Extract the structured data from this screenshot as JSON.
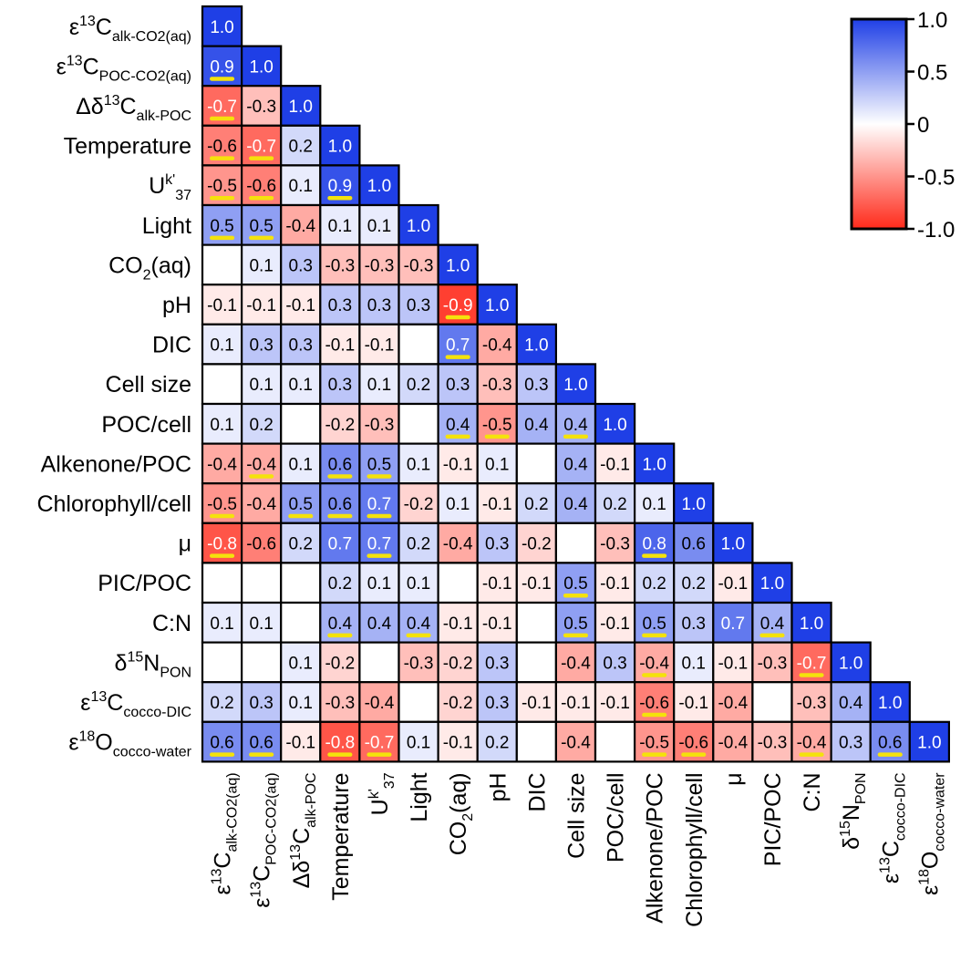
{
  "chart_data": {
    "type": "heatmap",
    "title": "",
    "rows": [
      {
        "main": "ε",
        "sup": "13",
        "base": "C",
        "sub": "alk-CO2(aq)",
        "after": ""
      },
      {
        "main": "ε",
        "sup": "13",
        "base": "C",
        "sub": "POC-CO2(aq)",
        "after": ""
      },
      {
        "main": "Δδ",
        "sup": "13",
        "base": "C",
        "sub": "alk-POC",
        "after": ""
      },
      {
        "main": "Temperature",
        "sup": "",
        "base": "",
        "sub": "",
        "after": ""
      },
      {
        "main": "U",
        "sup": "k'",
        "base": "",
        "sub": "37",
        "after": ""
      },
      {
        "main": "Light",
        "sup": "",
        "base": "",
        "sub": "",
        "after": ""
      },
      {
        "main": "CO",
        "sup": "",
        "base": "",
        "sub": "2",
        "after": "(aq)"
      },
      {
        "main": "pH",
        "sup": "",
        "base": "",
        "sub": "",
        "after": ""
      },
      {
        "main": "DIC",
        "sup": "",
        "base": "",
        "sub": "",
        "after": ""
      },
      {
        "main": "Cell size",
        "sup": "",
        "base": "",
        "sub": "",
        "after": ""
      },
      {
        "main": "POC/cell",
        "sup": "",
        "base": "",
        "sub": "",
        "after": ""
      },
      {
        "main": "Alkenone/POC",
        "sup": "",
        "base": "",
        "sub": "",
        "after": ""
      },
      {
        "main": "Chlorophyll/cell",
        "sup": "",
        "base": "",
        "sub": "",
        "after": ""
      },
      {
        "main": "μ",
        "sup": "",
        "base": "",
        "sub": "",
        "after": ""
      },
      {
        "main": "PIC/POC",
        "sup": "",
        "base": "",
        "sub": "",
        "after": ""
      },
      {
        "main": "C:N",
        "sup": "",
        "base": "",
        "sub": "",
        "after": ""
      },
      {
        "main": "δ",
        "sup": "15",
        "base": "N",
        "sub": "PON",
        "after": ""
      },
      {
        "main": "ε",
        "sup": "13",
        "base": "C",
        "sub": "cocco-DIC",
        "after": ""
      },
      {
        "main": "ε",
        "sup": "18",
        "base": "O",
        "sub": "cocco-water",
        "after": ""
      }
    ],
    "values": [
      [
        1.0
      ],
      [
        0.9,
        1.0
      ],
      [
        -0.7,
        -0.3,
        1.0
      ],
      [
        -0.6,
        -0.7,
        0.2,
        1.0
      ],
      [
        -0.5,
        -0.6,
        0.1,
        0.9,
        1.0
      ],
      [
        0.5,
        0.5,
        -0.4,
        0.1,
        0.1,
        1.0
      ],
      [
        0.0,
        0.1,
        0.3,
        -0.3,
        -0.3,
        -0.3,
        1.0
      ],
      [
        -0.1,
        -0.1,
        -0.1,
        0.3,
        0.3,
        0.3,
        -0.9,
        1.0
      ],
      [
        0.1,
        0.3,
        0.3,
        -0.1,
        -0.1,
        0.0,
        0.7,
        -0.4,
        1.0
      ],
      [
        0.0,
        0.1,
        0.1,
        0.3,
        0.1,
        0.2,
        0.3,
        -0.3,
        0.3,
        1.0
      ],
      [
        0.1,
        0.2,
        0.0,
        -0.2,
        -0.3,
        0.0,
        0.4,
        -0.5,
        0.4,
        0.4,
        1.0
      ],
      [
        -0.4,
        -0.4,
        0.1,
        0.6,
        0.5,
        0.1,
        -0.1,
        0.1,
        0.0,
        0.4,
        -0.1,
        1.0
      ],
      [
        -0.5,
        -0.4,
        0.5,
        0.6,
        0.7,
        -0.2,
        0.1,
        -0.1,
        0.2,
        0.4,
        0.2,
        0.1,
        1.0
      ],
      [
        -0.8,
        -0.6,
        0.2,
        0.7,
        0.7,
        0.2,
        -0.4,
        0.3,
        -0.2,
        0.0,
        -0.3,
        0.8,
        0.6,
        1.0
      ],
      [
        0.0,
        0.0,
        0.0,
        0.2,
        0.1,
        0.1,
        0.0,
        -0.1,
        -0.1,
        0.5,
        -0.1,
        0.2,
        0.2,
        -0.1,
        1.0
      ],
      [
        0.1,
        0.1,
        0.0,
        0.4,
        0.4,
        0.4,
        -0.1,
        -0.1,
        0.0,
        0.5,
        -0.1,
        0.5,
        0.3,
        0.7,
        0.4,
        1.0
      ],
      [
        0.0,
        0.0,
        0.1,
        -0.2,
        0.0,
        -0.3,
        -0.2,
        0.3,
        0.0,
        -0.4,
        0.3,
        -0.4,
        0.1,
        -0.1,
        -0.3,
        -0.7,
        1.0
      ],
      [
        0.2,
        0.3,
        0.1,
        -0.3,
        -0.4,
        0.0,
        -0.2,
        0.3,
        -0.1,
        -0.1,
        -0.1,
        -0.6,
        -0.1,
        -0.4,
        0.0,
        -0.3,
        0.4,
        1.0
      ],
      [
        0.6,
        0.6,
        -0.1,
        -0.8,
        -0.7,
        0.1,
        -0.1,
        0.2,
        0.0,
        -0.4,
        0.0,
        -0.5,
        -0.6,
        -0.4,
        -0.3,
        -0.4,
        0.3,
        0.6,
        1.0
      ]
    ],
    "labels": [
      [
        "1.0"
      ],
      [
        "0.9",
        "1.0"
      ],
      [
        "-0.7",
        "-0.3",
        "1.0"
      ],
      [
        "-0.6",
        "-0.7",
        "0.2",
        "1.0"
      ],
      [
        "-0.5",
        "-0.6",
        "0.1",
        "0.9",
        "1.0"
      ],
      [
        "0.5",
        "0.5",
        "-0.4",
        "0.1",
        "0.1",
        "1.0"
      ],
      [
        "",
        "0.1",
        "0.3",
        "-0.3",
        "-0.3",
        "-0.3",
        "1.0"
      ],
      [
        "-0.1",
        "-0.1",
        "-0.1",
        "0.3",
        "0.3",
        "0.3",
        "-0.9",
        "1.0"
      ],
      [
        "0.1",
        "0.3",
        "0.3",
        "-0.1",
        "-0.1",
        "",
        "0.7",
        "-0.4",
        "1.0"
      ],
      [
        "",
        "0.1",
        "0.1",
        "0.3",
        "0.1",
        "0.2",
        "0.3",
        "-0.3",
        "0.3",
        "1.0"
      ],
      [
        "0.1",
        "0.2",
        "",
        "-0.2",
        "-0.3",
        "",
        "0.4",
        "-0.5",
        "0.4",
        "0.4",
        "1.0"
      ],
      [
        "-0.4",
        "-0.4",
        "0.1",
        "0.6",
        "0.5",
        "0.1",
        "-0.1",
        "0.1",
        "",
        "0.4",
        "-0.1",
        "1.0"
      ],
      [
        "-0.5",
        "-0.4",
        "0.5",
        "0.6",
        "0.7",
        "-0.2",
        "0.1",
        "-0.1",
        "0.2",
        "0.4",
        "0.2",
        "0.1",
        "1.0"
      ],
      [
        "-0.8",
        "-0.6",
        "0.2",
        "0.7",
        "0.7",
        "0.2",
        "-0.4",
        "0.3",
        "-0.2",
        "",
        "-0.3",
        "0.8",
        "0.6",
        "1.0"
      ],
      [
        "",
        "",
        "",
        "0.2",
        "0.1",
        "0.1",
        "",
        "-0.1",
        "-0.1",
        "0.5",
        "-0.1",
        "0.2",
        "0.2",
        "-0.1",
        "1.0"
      ],
      [
        "0.1",
        "0.1",
        "",
        "0.4",
        "0.4",
        "0.4",
        "-0.1",
        "-0.1",
        "",
        "0.5",
        "-0.1",
        "0.5",
        "0.3",
        "0.7",
        "0.4",
        "1.0"
      ],
      [
        "",
        "",
        "0.1",
        "-0.2",
        "",
        "-0.3",
        "-0.2",
        "0.3",
        "",
        "-0.4",
        "0.3",
        "-0.4",
        "0.1",
        "-0.1",
        "-0.3",
        "-0.7",
        "1.0"
      ],
      [
        "0.2",
        "0.3",
        "0.1",
        "-0.3",
        "-0.4",
        "",
        "-0.2",
        "0.3",
        "-0.1",
        "-0.1",
        "-0.1",
        "-0.6",
        "-0.1",
        "-0.4",
        "",
        "-0.3",
        "0.4",
        "1.0"
      ],
      [
        "0.6",
        "0.6",
        "-0.1",
        "-0.8",
        "-0.7",
        "0.1",
        "-0.1",
        "0.2",
        "",
        "-0.4",
        "",
        "-0.5",
        "-0.6",
        "-0.4",
        "-0.3",
        "-0.4",
        "0.3",
        "0.6",
        "1.0"
      ]
    ],
    "significant": [
      [
        1,
        0
      ],
      [
        2,
        0
      ],
      [
        3,
        0
      ],
      [
        3,
        1
      ],
      [
        4,
        0
      ],
      [
        4,
        1
      ],
      [
        4,
        3
      ],
      [
        5,
        0
      ],
      [
        5,
        1
      ],
      [
        7,
        6
      ],
      [
        8,
        6
      ],
      [
        10,
        6
      ],
      [
        10,
        7
      ],
      [
        10,
        9
      ],
      [
        11,
        1
      ],
      [
        11,
        3
      ],
      [
        11,
        4
      ],
      [
        12,
        0
      ],
      [
        12,
        2
      ],
      [
        12,
        3
      ],
      [
        12,
        4
      ],
      [
        13,
        0
      ],
      [
        13,
        4
      ],
      [
        13,
        11
      ],
      [
        14,
        9
      ],
      [
        15,
        3
      ],
      [
        15,
        5
      ],
      [
        15,
        9
      ],
      [
        15,
        11
      ],
      [
        15,
        14
      ],
      [
        16,
        11
      ],
      [
        16,
        15
      ],
      [
        17,
        11
      ],
      [
        18,
        0
      ],
      [
        18,
        1
      ],
      [
        18,
        3
      ],
      [
        18,
        4
      ],
      [
        18,
        11
      ],
      [
        18,
        12
      ],
      [
        18,
        15
      ],
      [
        18,
        17
      ]
    ],
    "colorscale": {
      "min": -1.0,
      "max": 1.0,
      "low_color": "#ff2a1a",
      "mid_color": "#ffffff",
      "high_color": "#1f3fe6"
    },
    "legend": {
      "ticks": [
        1.0,
        0.5,
        0,
        -0.5,
        -1.0
      ],
      "tick_labels": [
        "1.0",
        "0.5",
        "0",
        "-0.5",
        "-1.0"
      ],
      "position": "top-right"
    },
    "significance_marker_color": "#f4e20c"
  }
}
